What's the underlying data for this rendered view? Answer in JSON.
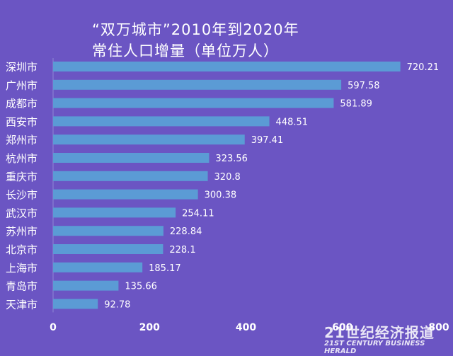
{
  "chart_data": {
    "type": "bar",
    "orientation": "horizontal",
    "title_lines": [
      "“双万城市”2010年到2020年",
      "常住人口增量（单位万人）"
    ],
    "categories": [
      "深圳市",
      "广州市",
      "成都市",
      "西安市",
      "郑州市",
      "杭州市",
      "重庆市",
      "长沙市",
      "武汉市",
      "苏州市",
      "北京市",
      "上海市",
      "青岛市",
      "天津市"
    ],
    "values": [
      720.21,
      597.58,
      581.89,
      448.51,
      397.41,
      323.56,
      320.8,
      300.38,
      254.11,
      228.84,
      228.1,
      185.17,
      135.66,
      92.78
    ],
    "value_labels": [
      "720.21",
      "597.58",
      "581.89",
      "448.51",
      "397.41",
      "323.56",
      "320.8",
      "300.38",
      "254.11",
      "228.84",
      "228.1",
      "185.17",
      "135.66",
      "92.78"
    ],
    "xlim": [
      0,
      800
    ],
    "x_ticks": [
      "0",
      "200",
      "400",
      "600",
      "800"
    ],
    "grid": false,
    "legend": "none",
    "colors": {
      "background": "#6b55c3",
      "bar": "#5b9bd5",
      "text": "#ffffff"
    }
  },
  "watermark": {
    "main": "21世纪经济报道",
    "sub": "21ST CENTURY BUSINESS HERALD"
  }
}
